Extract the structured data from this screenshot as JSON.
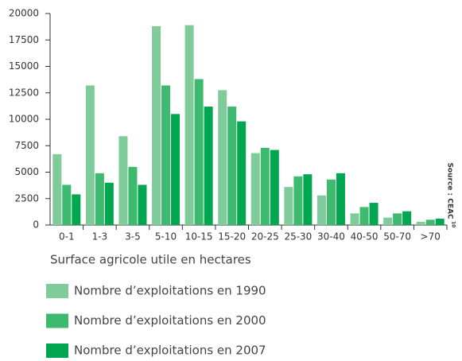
{
  "chart_data": {
    "type": "bar",
    "categories": [
      "0-1",
      "1-3",
      "3-5",
      "5-10",
      "10-15",
      "15-20",
      "20-25",
      "25-30",
      "30-40",
      "40-50",
      "50-70",
      ">70"
    ],
    "series": [
      {
        "name": "Nombre d’exploitations en 1990",
        "color": "#7fcc9a",
        "values": [
          6700,
          13200,
          8400,
          18800,
          18900,
          12750,
          6800,
          3600,
          2800,
          1100,
          700,
          300
        ]
      },
      {
        "name": "Nombre d’exploitations en 2000",
        "color": "#3dba6e",
        "values": [
          3800,
          4900,
          5500,
          13200,
          13800,
          11200,
          7300,
          4600,
          4300,
          1700,
          1100,
          500
        ]
      },
      {
        "name": "Nombre d’exploitations en 2007",
        "color": "#00a650",
        "values": [
          2900,
          4000,
          3800,
          10500,
          11200,
          9800,
          7100,
          4800,
          4900,
          2100,
          1300,
          600
        ]
      }
    ],
    "x_label": "Surface agricole utile en hectares",
    "source": "Source : CEAC",
    "source_note": "10",
    "ylim": [
      0,
      20000
    ],
    "yticks": [
      0,
      2500,
      5000,
      7500,
      10000,
      12500,
      15000,
      17500,
      20000
    ]
  }
}
